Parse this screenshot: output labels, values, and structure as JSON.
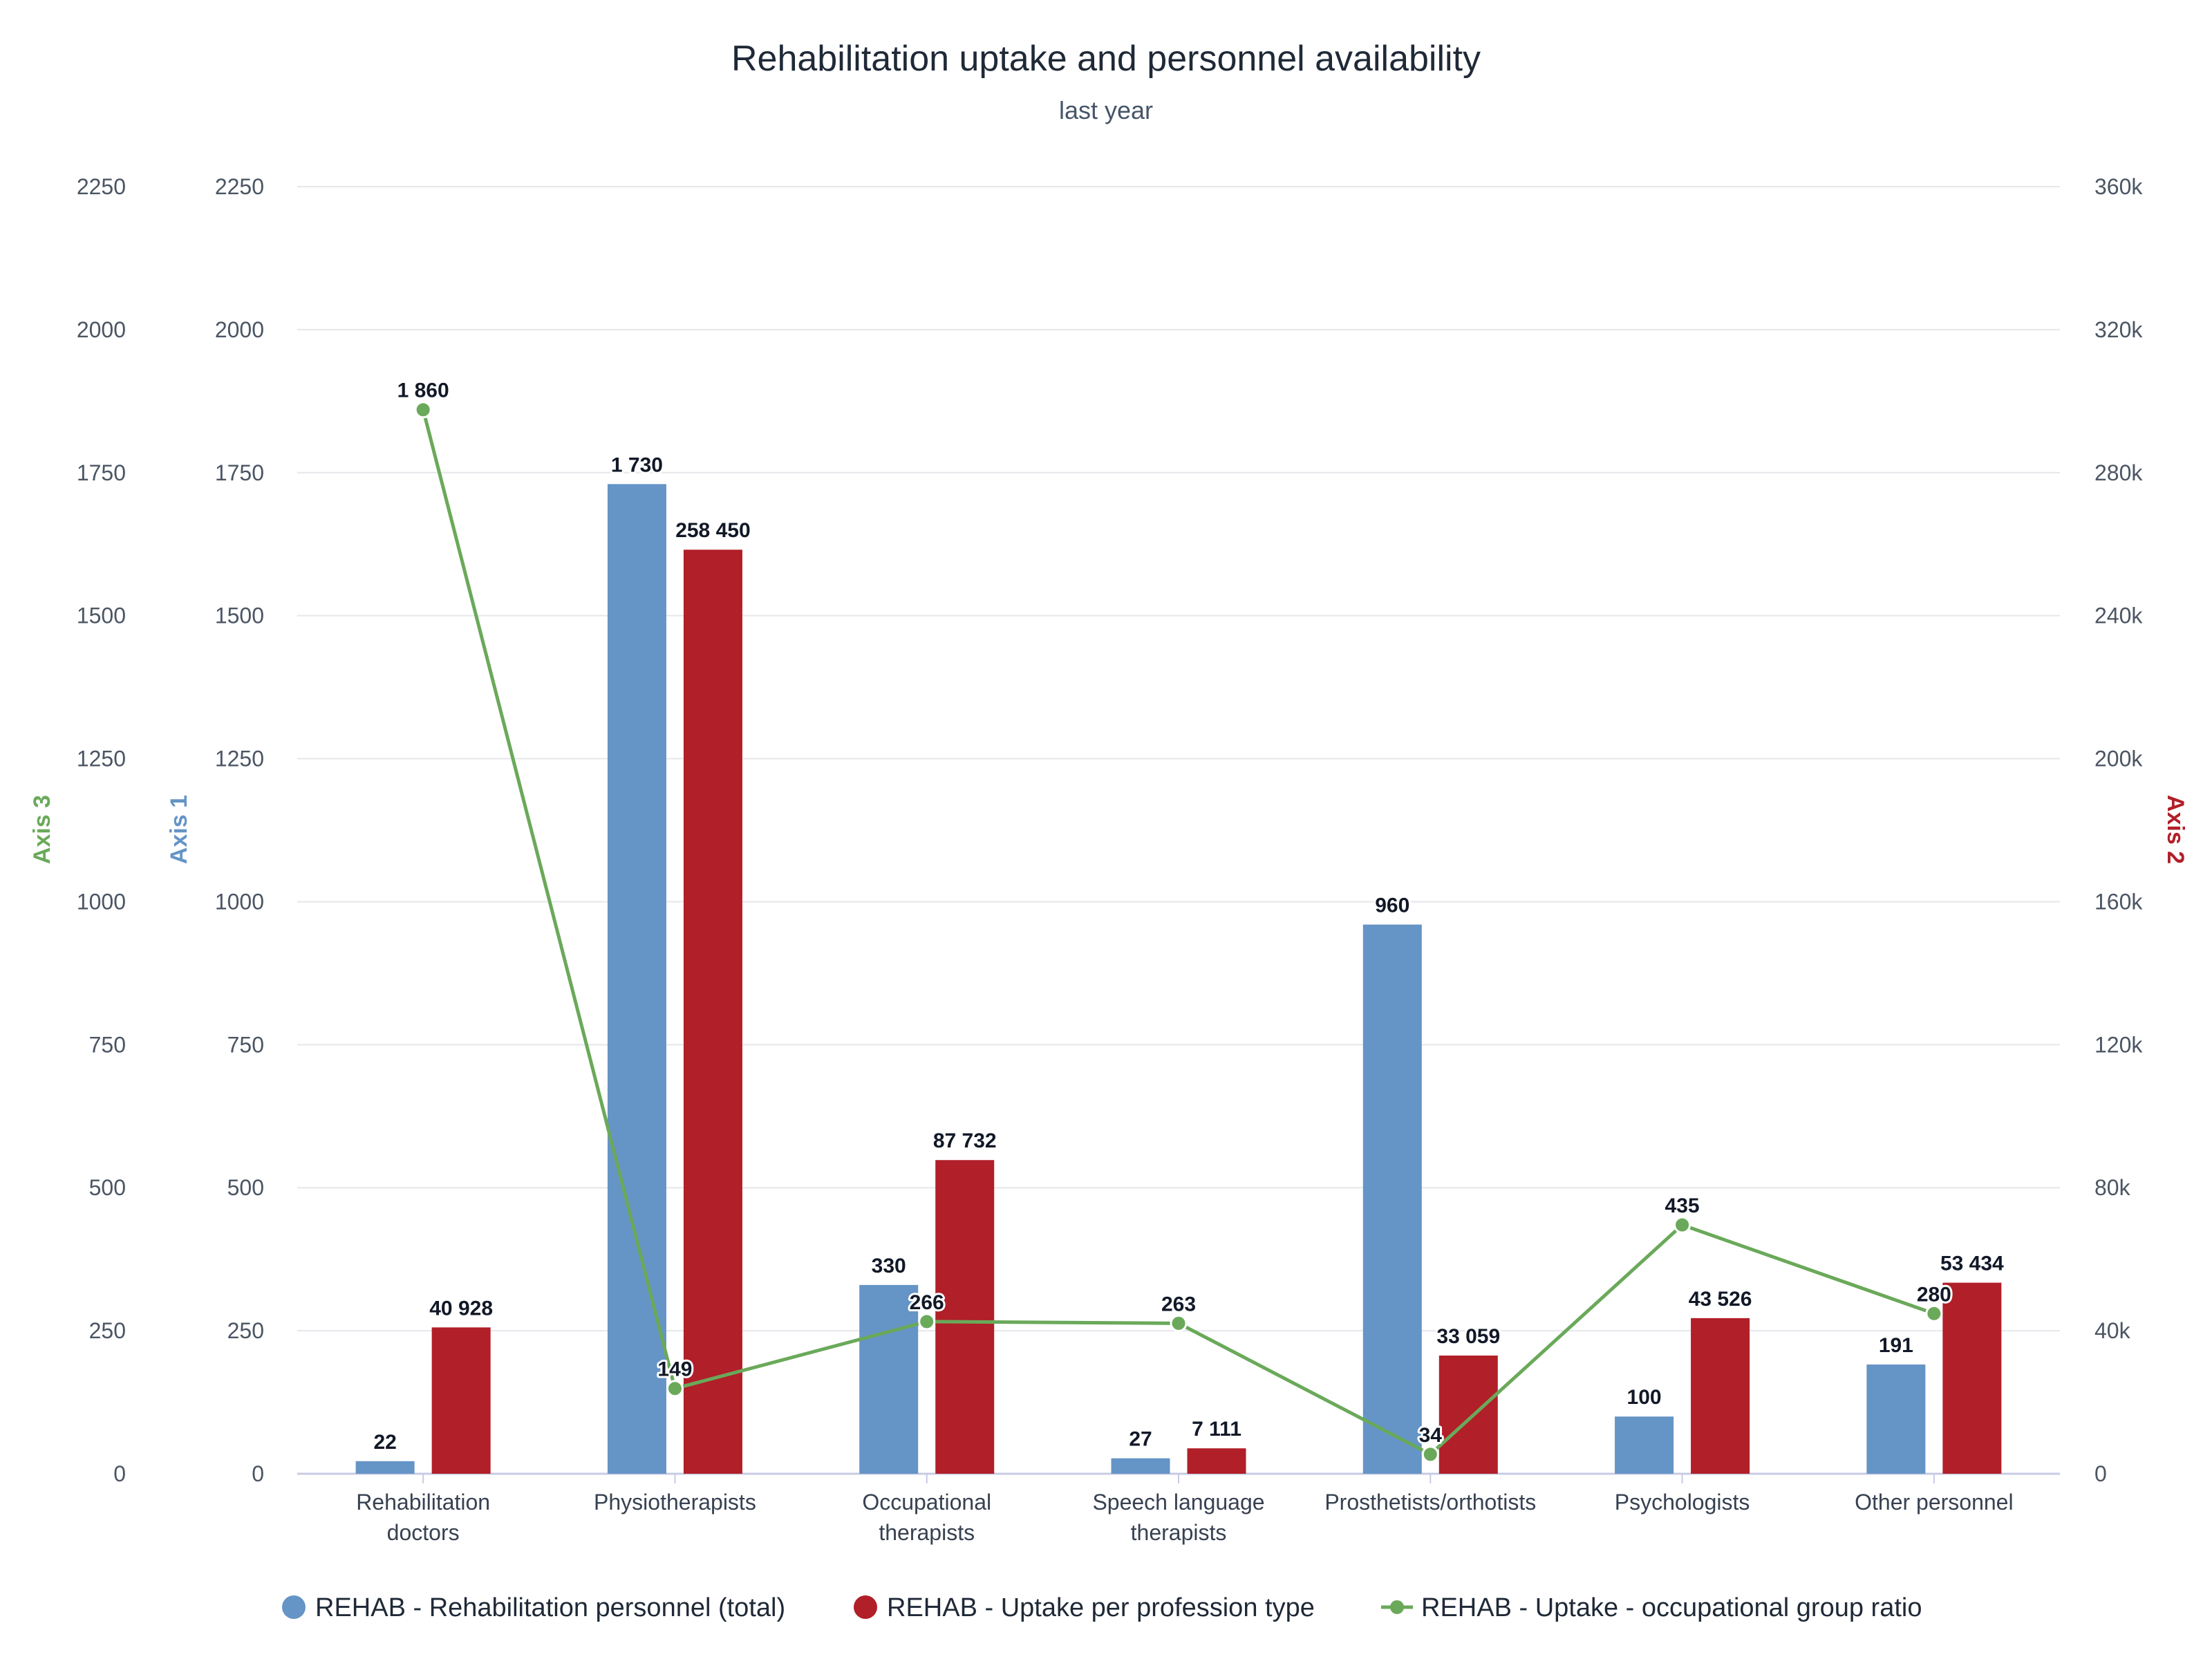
{
  "colors": {
    "axis1": "#6594c6",
    "axis2": "#b11f28",
    "axis3": "#6aa95a",
    "grid": "#e5e7eb",
    "baseline": "#c7cbe3"
  },
  "chart_data": {
    "type": "bar",
    "title": "Rehabilitation uptake and personnel availability",
    "subtitle": "last year",
    "categories": [
      [
        "Rehabilitation",
        "doctors"
      ],
      [
        "Physiotherapists"
      ],
      [
        "Occupational",
        "therapists"
      ],
      [
        "Speech language",
        "therapists"
      ],
      [
        "Prosthetists/orthotists"
      ],
      [
        "Psychologists"
      ],
      [
        "Other personnel"
      ]
    ],
    "axes": {
      "axis3": {
        "title": "Axis 3",
        "min": 0,
        "max": 2250,
        "ticks": [
          "0",
          "250",
          "500",
          "750",
          "1000",
          "1250",
          "1500",
          "1750",
          "2000",
          "2250"
        ]
      },
      "axis1": {
        "title": "Axis 1",
        "min": 0,
        "max": 2250,
        "ticks": [
          "0",
          "250",
          "500",
          "750",
          "1000",
          "1250",
          "1500",
          "1750",
          "2000",
          "2250"
        ]
      },
      "axis2": {
        "title": "Axis 2",
        "min": 0,
        "max": 360000,
        "ticks": [
          "0",
          "40k",
          "80k",
          "120k",
          "160k",
          "200k",
          "240k",
          "280k",
          "320k",
          "360k"
        ]
      }
    },
    "series": [
      {
        "name": "REHAB - Rehabilitation personnel (total)",
        "type": "bar",
        "axis": "axis1",
        "color": "#6594c6",
        "values": [
          22,
          1730,
          330,
          27,
          960,
          100,
          191
        ],
        "labels": [
          "22",
          "1 730",
          "330",
          "27",
          "960",
          "100",
          "191"
        ]
      },
      {
        "name": "REHAB - Uptake per profession type",
        "type": "bar",
        "axis": "axis2",
        "color": "#b11f28",
        "values": [
          40928,
          258450,
          87732,
          7111,
          33059,
          43526,
          53434
        ],
        "labels": [
          "40 928",
          "258 450",
          "87 732",
          "7 111",
          "33 059",
          "43 526",
          "53 434"
        ]
      },
      {
        "name": "REHAB - Uptake - occupational group ratio",
        "type": "line",
        "axis": "axis3",
        "color": "#6aa95a",
        "values": [
          1860,
          149,
          266,
          263,
          34,
          435,
          280
        ],
        "labels": [
          "1 860",
          "149",
          "266",
          "263",
          "34",
          "435",
          "280"
        ]
      }
    ],
    "grid": true,
    "legend": "bottom-center"
  }
}
